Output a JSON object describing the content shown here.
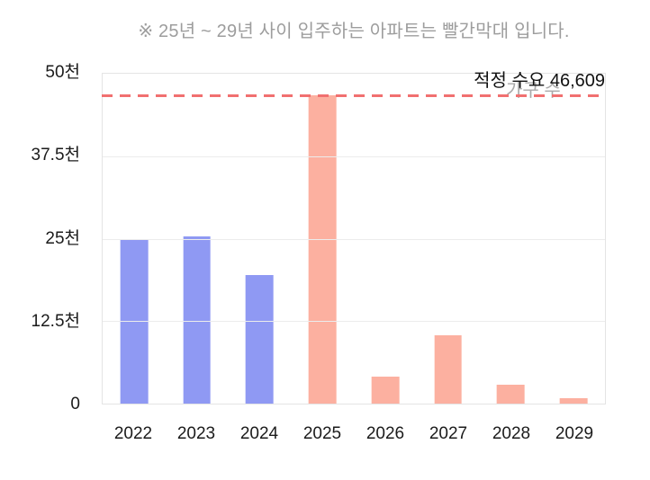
{
  "note": {
    "text": "※ 25년 ~ 29년 사이 입주하는 아파트는 빨간막대 입니다."
  },
  "annotation": {
    "text": "적정 수요 46,609"
  },
  "legend": {
    "series_name": "가구 수"
  },
  "colors": {
    "blue_bar": "#8f99f3",
    "red_bar": "#fcb0a0",
    "reference_line": "#f17070",
    "grid": "#ececec",
    "plot_border": "#e4e4e4",
    "title_gray": "#9d9d9d",
    "legend_gray": "#a9a9a9",
    "tick_text": "#1b1b1b"
  },
  "chart_data": {
    "type": "bar",
    "title": "※ 25년 ~ 29년 사이 입주하는 아파트는 빨간막대 입니다.",
    "series_name": "가구 수",
    "categories": [
      "2022",
      "2023",
      "2024",
      "2025",
      "2026",
      "2027",
      "2028",
      "2029"
    ],
    "values": [
      25000,
      25300,
      19500,
      46800,
      4100,
      10300,
      2900,
      850
    ],
    "bar_colors": [
      "blue",
      "blue",
      "blue",
      "red",
      "red",
      "red",
      "red",
      "red"
    ],
    "ylim": [
      0,
      50000
    ],
    "yticks": [
      {
        "label": "50천",
        "value": 50000
      },
      {
        "label": "37.5천",
        "value": 37500
      },
      {
        "label": "25천",
        "value": 25000
      },
      {
        "label": "12.5천",
        "value": 12500
      },
      {
        "label": "0",
        "value": 0
      }
    ],
    "grid": "horizontal",
    "legend_position": "top-right-inside",
    "reference_line": {
      "label": "적정 수요 46,609",
      "value": 46609,
      "style": "dashed",
      "color": "#f17070"
    }
  }
}
